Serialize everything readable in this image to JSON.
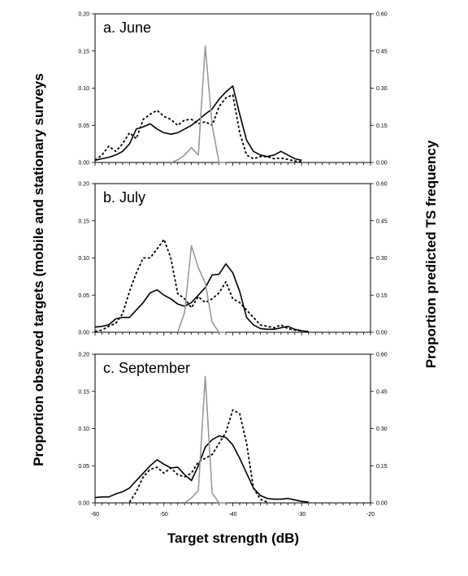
{
  "labels": {
    "left_axis": "Proportion observed targets (mobile and stationary surveys",
    "right_axis": "Proportion predicted TS frequency",
    "x_axis": "Target strength (dB)"
  },
  "colors": {
    "mobile": "#000000",
    "stationary": "#000000",
    "predicted": "#999999"
  },
  "chart_data": [
    {
      "type": "line",
      "title": "a. June",
      "x_ticks": [
        -60,
        -50,
        -40,
        -30,
        -20
      ],
      "xlim": [
        -60,
        -20
      ],
      "ylim_left": [
        0,
        0.2
      ],
      "ylim_right": [
        0,
        0.6
      ],
      "y_ticks_left": [
        "0.00",
        "0.05",
        "0.10",
        "0.15",
        "0.20"
      ],
      "y_ticks_right": [
        "0.00",
        "0.15",
        "0.30",
        "0.45",
        "0.60"
      ],
      "series": [
        {
          "style": "solid-black",
          "axis": "left",
          "x": [
            -60,
            -59,
            -58,
            -57,
            -56,
            -55,
            -54,
            -53,
            -52,
            -51,
            -50,
            -49,
            -48,
            -47,
            -46,
            -45,
            -44,
            -43,
            -42,
            -41,
            -40,
            -39,
            -38,
            -37,
            -36,
            -35,
            -34,
            -33,
            -32,
            -31,
            -30
          ],
          "y": [
            0.003,
            0.005,
            0.007,
            0.01,
            0.015,
            0.025,
            0.045,
            0.048,
            0.052,
            0.045,
            0.04,
            0.038,
            0.04,
            0.045,
            0.05,
            0.057,
            0.065,
            0.072,
            0.085,
            0.095,
            0.103,
            0.065,
            0.03,
            0.015,
            0.01,
            0.008,
            0.01,
            0.015,
            0.01,
            0.005,
            0.003
          ]
        },
        {
          "style": "dotted-black",
          "axis": "left",
          "x": [
            -60,
            -59,
            -58,
            -57,
            -56,
            -55,
            -54,
            -53,
            -52,
            -51,
            -50,
            -49,
            -48,
            -47,
            -46,
            -45,
            -44,
            -43,
            -42,
            -41,
            -40,
            -39,
            -38,
            -37,
            -36,
            -35,
            -34,
            -33,
            -32,
            -31,
            -30
          ],
          "y": [
            0.003,
            0.01,
            0.022,
            0.015,
            0.025,
            0.04,
            0.032,
            0.058,
            0.065,
            0.07,
            0.062,
            0.058,
            0.05,
            0.057,
            0.058,
            0.052,
            0.055,
            0.05,
            0.075,
            0.087,
            0.091,
            0.04,
            0.01,
            0.005,
            0.008,
            0.008,
            0.005,
            0.006,
            0.004,
            0.002,
            0.001
          ]
        },
        {
          "style": "solid-gray",
          "axis": "right",
          "x": [
            -49,
            -48,
            -47,
            -46,
            -45,
            -44,
            -43,
            -42,
            -41
          ],
          "y": [
            0.0,
            0.01,
            0.03,
            0.06,
            0.03,
            0.47,
            0.15,
            0.0,
            0.0
          ]
        }
      ]
    },
    {
      "type": "line",
      "title": "b. July",
      "x_ticks": [
        -60,
        -50,
        -40,
        -30,
        -20
      ],
      "xlim": [
        -60,
        -20
      ],
      "ylim_left": [
        0,
        0.2
      ],
      "ylim_right": [
        0,
        0.6
      ],
      "y_ticks_left": [
        "0.00",
        "0.05",
        "0.10",
        "0.15",
        "0.20"
      ],
      "y_ticks_right": [
        "0.00",
        "0.15",
        "0.30",
        "0.45",
        "0.60"
      ],
      "series": [
        {
          "style": "solid-black",
          "axis": "left",
          "x": [
            -60,
            -59,
            -58,
            -57,
            -56,
            -55,
            -54,
            -53,
            -52,
            -51,
            -50,
            -49,
            -48,
            -47,
            -46,
            -45,
            -44,
            -43,
            -42,
            -41,
            -40,
            -39,
            -38,
            -37,
            -36,
            -35,
            -34,
            -33,
            -32,
            -31,
            -30,
            -29
          ],
          "y": [
            0.007,
            0.008,
            0.01,
            0.018,
            0.02,
            0.02,
            0.03,
            0.04,
            0.053,
            0.057,
            0.05,
            0.045,
            0.038,
            0.035,
            0.04,
            0.05,
            0.06,
            0.077,
            0.078,
            0.092,
            0.08,
            0.055,
            0.02,
            0.01,
            0.005,
            0.004,
            0.004,
            0.006,
            0.008,
            0.004,
            0.002,
            0.001
          ]
        },
        {
          "style": "dotted-black",
          "axis": "left",
          "x": [
            -60,
            -59,
            -58,
            -57,
            -56,
            -55,
            -54,
            -53,
            -52,
            -51,
            -50,
            -49,
            -48,
            -47,
            -46,
            -45,
            -44,
            -43,
            -42,
            -41,
            -40,
            -39,
            -38,
            -37,
            -36,
            -35,
            -34,
            -33,
            -32,
            -31,
            -30
          ],
          "y": [
            0.001,
            0.003,
            0.008,
            0.012,
            0.025,
            0.055,
            0.08,
            0.1,
            0.1,
            0.112,
            0.125,
            0.1,
            0.052,
            0.045,
            0.033,
            0.048,
            0.04,
            0.045,
            0.053,
            0.068,
            0.045,
            0.04,
            0.03,
            0.02,
            0.01,
            0.008,
            0.006,
            0.01,
            0.005,
            0.003,
            0.002
          ]
        },
        {
          "style": "solid-gray",
          "axis": "right",
          "x": [
            -48,
            -47,
            -46,
            -45,
            -44,
            -43,
            -42,
            -41
          ],
          "y": [
            0.0,
            0.08,
            0.35,
            0.26,
            0.2,
            0.04,
            0.0,
            0.0
          ]
        }
      ]
    },
    {
      "type": "line",
      "title": "c. September",
      "x_ticks": [
        -60,
        -50,
        -40,
        -30,
        -20
      ],
      "xlim": [
        -60,
        -20
      ],
      "ylim_left": [
        0,
        0.2
      ],
      "ylim_right": [
        0,
        0.6
      ],
      "y_ticks_left": [
        "0.00",
        "0.05",
        "0.10",
        "0.15",
        "0.20"
      ],
      "y_ticks_right": [
        "0.00",
        "0.15",
        "0.30",
        "0.45",
        "0.60"
      ],
      "x_tick_labels": [
        "-60",
        "-50",
        "-40",
        "-30",
        "-20"
      ],
      "series": [
        {
          "style": "solid-black",
          "axis": "left",
          "x": [
            -60,
            -59,
            -58,
            -57,
            -56,
            -55,
            -54,
            -53,
            -52,
            -51,
            -50,
            -49,
            -48,
            -47,
            -46,
            -45,
            -44,
            -43,
            -42,
            -41,
            -40,
            -39,
            -38,
            -37,
            -36,
            -35,
            -34,
            -33,
            -32,
            -31,
            -30,
            -29
          ],
          "y": [
            0.007,
            0.008,
            0.008,
            0.012,
            0.015,
            0.02,
            0.03,
            0.04,
            0.05,
            0.058,
            0.052,
            0.047,
            0.048,
            0.038,
            0.03,
            0.05,
            0.075,
            0.085,
            0.09,
            0.088,
            0.078,
            0.06,
            0.04,
            0.02,
            0.01,
            0.006,
            0.005,
            0.005,
            0.006,
            0.004,
            0.002,
            0.001
          ]
        },
        {
          "style": "dotted-black",
          "axis": "left",
          "x": [
            -55,
            -54,
            -53,
            -52,
            -51,
            -50,
            -49,
            -48,
            -47,
            -46,
            -45,
            -44,
            -43,
            -42,
            -41,
            -40,
            -39,
            -38,
            -37,
            -36,
            -35
          ],
          "y": [
            0.001,
            0.015,
            0.035,
            0.045,
            0.048,
            0.04,
            0.047,
            0.038,
            0.035,
            0.04,
            0.055,
            0.06,
            0.065,
            0.08,
            0.095,
            0.125,
            0.12,
            0.08,
            0.02,
            0.005,
            0.001
          ]
        },
        {
          "style": "solid-gray",
          "axis": "right",
          "x": [
            -47,
            -46,
            -45,
            -44,
            -43,
            -42,
            -41
          ],
          "y": [
            0.0,
            0.02,
            0.05,
            0.51,
            0.04,
            0.0,
            0.0
          ]
        }
      ]
    }
  ]
}
